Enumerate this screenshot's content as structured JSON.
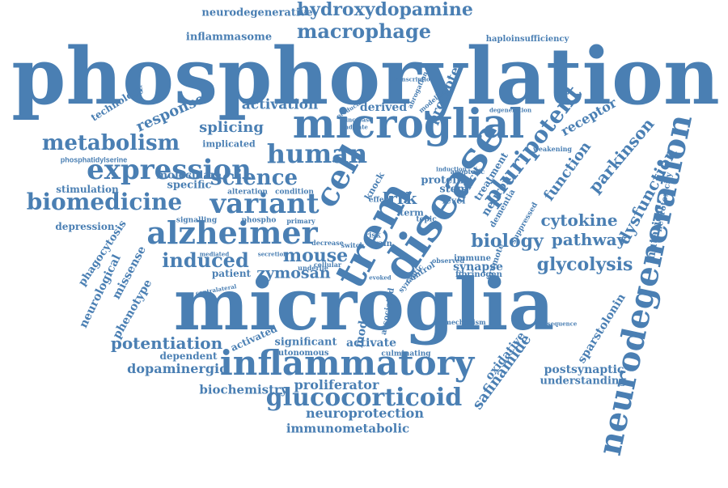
{
  "word_color": "#4A7FB3",
  "background": "#ffffff",
  "words": [
    "phosphorylation",
    "microglia",
    "microglial",
    "disease",
    "neurodegeneration",
    "trem",
    "cell",
    "inflammatory",
    "alzheimer",
    "expression",
    "human",
    "variant",
    "biomedicine",
    "metabolism",
    "pluripotent",
    "glucocorticoid",
    "macrophage",
    "hydroxydopamine",
    "science",
    "induced",
    "mouse",
    "potentiation",
    "cytokine",
    "biology",
    "pathway",
    "glycolysis",
    "neuroprotection",
    "proliferator",
    "biochemistry",
    "dopaminergic",
    "zymosan",
    "parkinson",
    "dysfunction",
    "function",
    "receptor",
    "splicing",
    "activation",
    "response",
    "safinamide",
    "immunometabolic",
    "postsynaptic",
    "understanding",
    "sparstolonin",
    "neurodegenerative",
    "inflammasome",
    "haploinsufficiency",
    "technology",
    "phosphatidylserine",
    "stimulation",
    "depression",
    "phagocytosis",
    "neurological",
    "missense",
    "phenotype",
    "specific",
    "molecular",
    "alteration",
    "condition",
    "signalling",
    "activated",
    "significant",
    "activate",
    "autonomous",
    "dependent",
    "patient",
    "model",
    "lrrk",
    "protein",
    "stem",
    "synapse",
    "immune",
    "fibrinogen",
    "mutation",
    "neurotoxicity",
    "promote",
    "derived",
    "implicated",
    "neuron",
    "deficit",
    "treatment",
    "dementia",
    "suppressed",
    "oxidative",
    "level",
    "mechanism",
    "culminating",
    "contralateral",
    "underlie",
    "cellular",
    "secretion",
    "mediated",
    "primary",
    "phospho",
    "brain",
    "risk",
    "term",
    "topic",
    "knock",
    "effect",
    "switch",
    "decrease",
    "associated",
    "control",
    "evoked",
    "synaptic",
    "observed",
    "induction",
    "consequence",
    "weakening",
    "apoptotic",
    "abrogation",
    "transcription",
    "modelling",
    "production",
    "increase",
    "indicate",
    "degeneration",
    "promote"
  ]
}
